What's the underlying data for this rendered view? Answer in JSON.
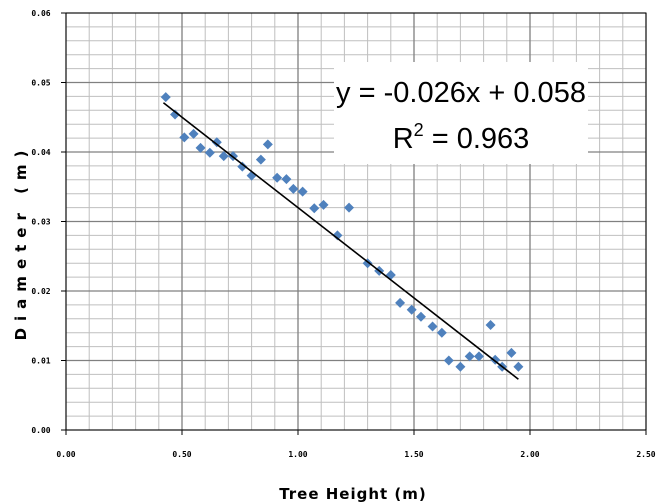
{
  "chart_data": {
    "type": "scatter",
    "xlabel": "Tree Height (m)",
    "ylabel": "Diameter (m)",
    "xlim": [
      0.0,
      2.5
    ],
    "ylim": [
      0.0,
      0.06
    ],
    "x_ticks": [
      "0.00",
      "0.50",
      "1.00",
      "1.50",
      "2.00",
      "2.50"
    ],
    "y_ticks": [
      "0.00",
      "0.01",
      "0.02",
      "0.03",
      "0.04",
      "0.05",
      "0.06"
    ],
    "grid": true,
    "marker_color": "#4f81bd",
    "trendline": {
      "type": "linear",
      "slope": -0.026,
      "intercept": 0.058,
      "x_range": [
        0.42,
        1.95
      ],
      "color": "#000000",
      "equation_label": "y = -0.026x + 0.058",
      "r_squared_prefix": "R",
      "r_squared_exponent": "2",
      "r_squared_value": " = 0.963"
    },
    "series": [
      {
        "points": [
          [
            0.43,
            0.0479
          ],
          [
            0.47,
            0.0454
          ],
          [
            0.51,
            0.0421
          ],
          [
            0.55,
            0.0426
          ],
          [
            0.58,
            0.0406
          ],
          [
            0.62,
            0.0399
          ],
          [
            0.65,
            0.0414
          ],
          [
            0.68,
            0.0394
          ],
          [
            0.72,
            0.0394
          ],
          [
            0.76,
            0.0379
          ],
          [
            0.8,
            0.0366
          ],
          [
            0.84,
            0.0389
          ],
          [
            0.87,
            0.0411
          ],
          [
            0.91,
            0.0363
          ],
          [
            0.95,
            0.0361
          ],
          [
            0.98,
            0.0347
          ],
          [
            1.02,
            0.0343
          ],
          [
            1.07,
            0.0319
          ],
          [
            1.11,
            0.0324
          ],
          [
            1.17,
            0.028
          ],
          [
            1.22,
            0.032
          ],
          [
            1.3,
            0.024
          ],
          [
            1.35,
            0.0229
          ],
          [
            1.4,
            0.0223
          ],
          [
            1.44,
            0.0183
          ],
          [
            1.49,
            0.0173
          ],
          [
            1.53,
            0.0163
          ],
          [
            1.58,
            0.0149
          ],
          [
            1.62,
            0.014
          ],
          [
            1.65,
            0.01
          ],
          [
            1.7,
            0.0091
          ],
          [
            1.74,
            0.0106
          ],
          [
            1.78,
            0.0106
          ],
          [
            1.83,
            0.0151
          ],
          [
            1.85,
            0.0101
          ],
          [
            1.88,
            0.0091
          ],
          [
            1.92,
            0.0111
          ],
          [
            1.95,
            0.0091
          ]
        ]
      }
    ]
  }
}
